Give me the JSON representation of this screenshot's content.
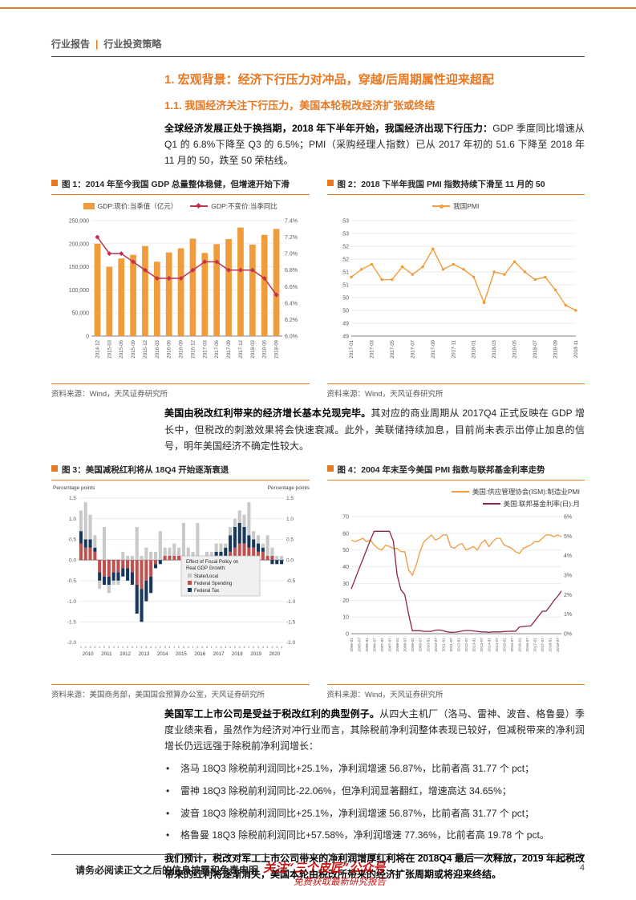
{
  "header": {
    "left": "行业报告",
    "sep": "|",
    "right": "行业投资策略"
  },
  "headings": {
    "h1": "1. 宏观背景：经济下行压力对冲品，穿越/后周期属性迎来超配",
    "h2": "1.1. 我国经济关注下行压力，美国本轮税改经济扩张或终结"
  },
  "paragraphs": {
    "p1_bold": "全球经济发展正处于换挡期，2018 年下半年开始，我国经济出现下行压力：",
    "p1_rest": "GDP 季度同比增速从 Q1 的 6.8%下降至 Q3 的 6.5%；PMI（采购经理人指数）已从 2017 年初的 51.6 下降至 2018 年 11 月的 50，跌至 50 荣枯线。",
    "p2_bold": "美国由税改红利带来的经济增长基本兑现完毕。",
    "p2_rest": "其对应的商业周期从 2017Q4 正式反映在 GDP 增长中，但税改的刺激效果将会快速衰减。此外，美联储持续加息，目前尚未表示出停止加息的信号，明年美国经济不确定性较大。",
    "p3_bold": "美国军工上市公司是受益于税改红利的典型例子。",
    "p3_rest": "从四大主机厂（洛马、雷神、波音、格鲁曼）季度业绩来看，虽然作为经济对冲行业而言，其除税前净利润整体表现已较好，但减税带来的净利润增长仍远远强于除税前净利润增长：",
    "p4_bold": "我们预计，税改对军工上市公司带来的净利润增厚红利将在 2018Q4 最后一次释放，2019 年起税改带来的红利将逐渐消失，美国本轮由税改所带来的经济扩张周期或将迎来终结。"
  },
  "bullets": [
    "洛马 18Q3 除税前利润同比+25.1%，净利润增速 56.87%，比前者高 31.77 个 pct；",
    "雷神 18Q3 除税前利润同比-22.06%，但净利润显著翻红，增速高达 34.65%；",
    "波音 18Q3 除税前利润同比+25.1%，净利润增速 56.87%，比前者高 31.77 个 pct；",
    "格鲁曼 18Q3 除税前利润同比+57.58%，净利润增速 77.36%，比前者高 19.78 个 pct。"
  ],
  "charts": [
    {
      "title": "图 1：2014 年至今我国 GDP 总量整体稳健，但增速开始下滑",
      "legend": [
        "GDP:现价:当季值（亿元）",
        "GDP:不变价:当季同比"
      ],
      "source": "资料来源：Wind，天风证券研究所"
    },
    {
      "title": "图 2：2018 下半年我国 PMI 指数持续下滑至 11 月的 50",
      "legend": [
        "我国PMI"
      ],
      "source": "资料来源：Wind，天风证券研究所"
    },
    {
      "title": "图 3：美国减税红利将从 18Q4 开始逐渐衰退",
      "legend": [],
      "source": "资料来源：美国商务部，美国国会预算办公室，天风证券研究所"
    },
    {
      "title": "图 4：2004 年末至今美国 PMI 指数与联邦基金利率走势",
      "legend": [
        "美国:供应管理协会(ISM):制造业PMI",
        "美国:联邦基金利率(日):月"
      ],
      "source": "资料来源：Wind，天风证券研究所"
    }
  ],
  "footer": {
    "disclaimer": "请务必阅读正文之后的信息披露和免责申明",
    "stamp_line1": "关注“三个皮匠”公众号",
    "stamp_line2": "免费获取最新研究报告",
    "page": "4"
  },
  "colors": {
    "accent_orange": "#E87722",
    "series_orange": "#F09B3C",
    "crimson": "#C0334F",
    "maroon": "#8E2344",
    "navy": "#17375E",
    "red": "#C0504D",
    "gray": "#C9C9C9",
    "stamp_red": "#CC1111"
  },
  "chart_data": [
    {
      "type": "bar",
      "title": "2014 年至今我国 GDP 总量整体稳健，但增速开始下滑",
      "categories": [
        "2014-12",
        "2015-03",
        "2015-06",
        "2015-09",
        "2015-12",
        "2016-03",
        "2016-06",
        "2016-09",
        "2016-12",
        "2017-03",
        "2017-06",
        "2017-09",
        "2017-12",
        "2018-03",
        "2018-06",
        "2018-09"
      ],
      "bars": [
        200000,
        150000,
        168000,
        176000,
        195000,
        161000,
        181000,
        190000,
        211000,
        180000,
        199000,
        210000,
        235000,
        198000,
        219000,
        232000
      ],
      "bars_name": "GDP:现价:当季值（亿元）",
      "line": [
        7.2,
        7.0,
        7.0,
        6.9,
        6.8,
        6.7,
        6.7,
        6.7,
        6.8,
        6.9,
        6.9,
        6.8,
        6.8,
        6.8,
        6.7,
        6.5
      ],
      "line_name": "GDP:不变价:当季同比",
      "left_axis": {
        "min": 0,
        "max": 250000,
        "step": 50000
      },
      "right_axis": {
        "min": 6.0,
        "max": 7.4,
        "step": 0.2
      }
    },
    {
      "type": "line",
      "title": "2018 下半年我国 PMI 指数持续下滑至 11 月的 50",
      "series_name": "我国PMI",
      "x": [
        "2017-01",
        "2017-02",
        "2017-03",
        "2017-04",
        "2017-05",
        "2017-06",
        "2017-07",
        "2017-08",
        "2017-09",
        "2017-10",
        "2017-11",
        "2017-12",
        "2018-01",
        "2018-02",
        "2018-03",
        "2018-04",
        "2018-05",
        "2018-06",
        "2018-07",
        "2018-08",
        "2018-09",
        "2018-10",
        "2018-11"
      ],
      "values": [
        51.3,
        51.6,
        51.8,
        51.2,
        51.2,
        51.7,
        51.4,
        51.7,
        52.4,
        51.6,
        51.8,
        51.6,
        51.3,
        50.3,
        51.5,
        51.4,
        51.9,
        51.5,
        51.2,
        51.3,
        50.8,
        50.2,
        50.0
      ],
      "ylim": [
        49,
        53.5
      ],
      "step": 0.5,
      "label_every": 2
    },
    {
      "type": "bar",
      "subtype": "stacked",
      "title": "美国减税红利将从 18Q4 开始逐渐衰退",
      "axis_label": "Percentage points",
      "legend_title_line1": "Effect of Fiscal Policy on",
      "legend_title_line2": "Real GDP Growth:",
      "years": [
        "2010",
        "2011",
        "2012",
        "2013",
        "2014",
        "2015",
        "2016",
        "2017",
        "2018",
        "2019",
        "2020"
      ],
      "quarter_labels": [
        "1",
        "2",
        "3",
        "4"
      ],
      "ylim": [
        -2.0,
        1.5
      ],
      "step": 0.5,
      "series": [
        {
          "name": "State/Local",
          "color_key": "gray",
          "values": [
            0.5,
            0.9,
            0.6,
            0.3,
            -0.2,
            0.8,
            -0.2,
            -0.1,
            -0.1,
            0.2,
            0.1,
            0.1,
            0.8,
            0.1,
            0.3,
            0.2,
            0.2,
            0.7,
            0.2,
            0.2,
            0.3,
            0.2,
            0.8,
            0.2,
            0.2,
            0.8,
            0.1,
            0.1,
            0.1,
            0.2,
            0.2,
            0.1,
            0.2,
            0.2,
            0.3,
            0.3,
            0.8,
            0.2,
            0.2,
            0.1,
            0.5,
            0.2,
            0.1,
            0.1
          ]
        },
        {
          "name": "Federal Spending",
          "color_key": "red",
          "values": [
            0.4,
            0.3,
            0.3,
            0.2,
            -0.3,
            -0.4,
            -0.4,
            -0.3,
            -0.3,
            -0.2,
            -0.2,
            -0.3,
            -0.6,
            -0.7,
            -0.5,
            -0.4,
            -0.1,
            0,
            0.1,
            0.1,
            0.1,
            0.1,
            0.1,
            0.1,
            0,
            0.1,
            0,
            0.1,
            0.1,
            0.1,
            0.1,
            0.1,
            0.2,
            0.3,
            0.4,
            0.4,
            0.3,
            0.3,
            0.2,
            0.2,
            0.1,
            0.1,
            0,
            0
          ]
        },
        {
          "name": "Federal Tax",
          "color_key": "navy",
          "values": [
            0.3,
            0.2,
            0.2,
            0.1,
            -0.2,
            -0.2,
            -0.2,
            -0.2,
            -0.2,
            -0.2,
            -0.3,
            -0.3,
            -0.7,
            -0.8,
            -0.5,
            -0.4,
            -0.1,
            -0.1,
            0,
            0,
            0,
            0,
            0,
            0,
            0,
            0,
            0,
            0,
            0,
            0.1,
            0.1,
            0.2,
            0.4,
            0.5,
            0.5,
            0.4,
            0.3,
            0.2,
            0.2,
            0.1,
            0,
            -0.1,
            -0.1,
            -0.1
          ]
        }
      ]
    },
    {
      "type": "line",
      "subtype": "dual-axis",
      "title": "2004 年末至今美国 PMI 指数与联邦基金利率走势",
      "x": [
        "2005-01",
        "2005-04",
        "2005-07",
        "2005-10",
        "2006-01",
        "2006-04",
        "2006-07",
        "2006-10",
        "2007-01",
        "2007-04",
        "2007-07",
        "2007-10",
        "2008-01",
        "2008-04",
        "2008-07",
        "2008-10",
        "2009-01",
        "2009-04",
        "2009-07",
        "2009-10",
        "2010-01",
        "2010-04",
        "2010-07",
        "2010-10",
        "2011-01",
        "2011-04",
        "2011-07",
        "2011-10",
        "2012-01",
        "2012-04",
        "2012-07",
        "2012-10",
        "2013-01",
        "2013-04",
        "2013-07",
        "2013-10",
        "2014-01",
        "2014-04",
        "2014-07",
        "2014-10",
        "2015-01",
        "2015-04",
        "2015-07",
        "2015-10",
        "2016-01",
        "2016-04",
        "2016-07",
        "2016-10",
        "2017-01",
        "2017-04",
        "2017-07",
        "2017-10",
        "2018-01",
        "2018-04",
        "2018-07",
        "2018-10"
      ],
      "series": [
        {
          "name": "美国:供应管理协会(ISM):制造业PMI",
          "axis": "left",
          "color_key": "series_orange",
          "values": [
            56,
            55,
            56,
            57,
            55,
            56,
            53,
            51,
            50,
            53,
            52,
            51,
            51,
            49,
            49,
            38,
            35,
            41,
            49,
            55,
            57,
            59,
            56,
            57,
            59,
            59,
            52,
            51,
            53,
            54,
            50,
            51,
            52,
            50,
            54,
            56,
            52,
            55,
            57,
            57,
            53,
            52,
            51,
            49,
            48,
            51,
            52,
            53,
            55,
            55,
            57,
            59,
            59,
            58,
            59,
            58
          ]
        },
        {
          "name": "美国:联邦基金利率(日):月",
          "axis": "right",
          "color_key": "maroon",
          "values": [
            2.3,
            2.8,
            3.3,
            3.8,
            4.3,
            4.8,
            5.25,
            5.25,
            5.25,
            5.25,
            5.25,
            4.75,
            3.0,
            2.25,
            2.0,
            1.0,
            0.15,
            0.15,
            0.15,
            0.12,
            0.12,
            0.12,
            0.18,
            0.19,
            0.16,
            0.1,
            0.07,
            0.08,
            0.1,
            0.14,
            0.16,
            0.16,
            0.14,
            0.12,
            0.09,
            0.09,
            0.07,
            0.09,
            0.09,
            0.09,
            0.11,
            0.12,
            0.13,
            0.12,
            0.34,
            0.37,
            0.39,
            0.4,
            0.65,
            0.9,
            1.15,
            1.15,
            1.41,
            1.69,
            1.91,
            2.19
          ]
        }
      ],
      "left_axis": {
        "min": 0,
        "max": 70,
        "step": 10
      },
      "right_axis": {
        "min": 0,
        "max": 6,
        "step": 1,
        "suffix": "%"
      },
      "label_every": 2
    }
  ]
}
